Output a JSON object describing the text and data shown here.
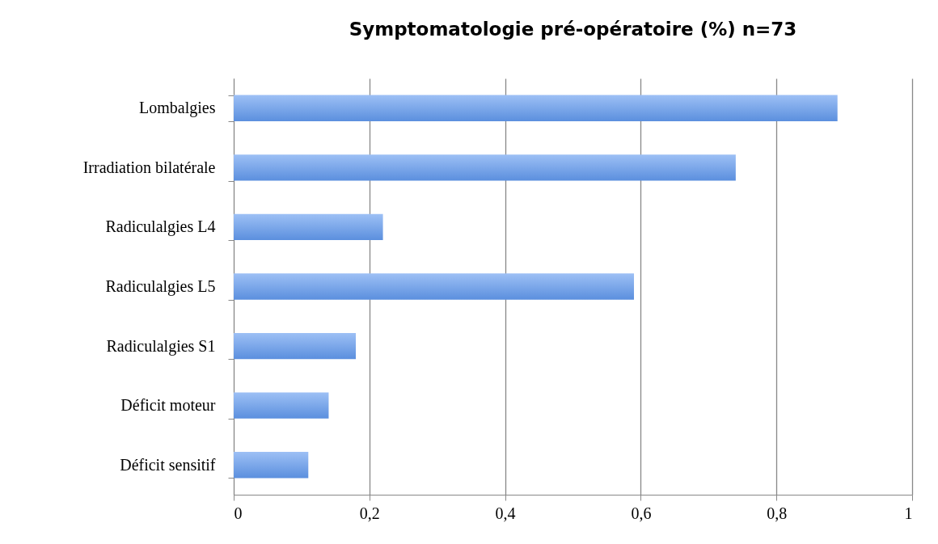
{
  "chart_data": {
    "type": "bar",
    "orientation": "horizontal",
    "title": "Symptomatologie pré-opératoire (%) n=73",
    "categories": [
      "Lombalgies",
      "Irradiation bilatérale",
      "Radiculalgies L4",
      "Radiculalgies L5",
      "Radiculalgies S1",
      "Déficit moteur",
      "Déficit sensitif"
    ],
    "values": [
      0.89,
      0.74,
      0.22,
      0.59,
      0.18,
      0.14,
      0.11
    ],
    "color": "#5b8fde",
    "xlim": [
      0,
      1
    ],
    "xticks": [
      0,
      {
        "value": 0.2,
        "label": "0,2"
      },
      {
        "value": 0.4,
        "label": "0,4"
      },
      {
        "value": 0.6,
        "label": "0,6"
      },
      {
        "value": 0.8,
        "label": "0,8"
      },
      1
    ],
    "grid": "x"
  }
}
